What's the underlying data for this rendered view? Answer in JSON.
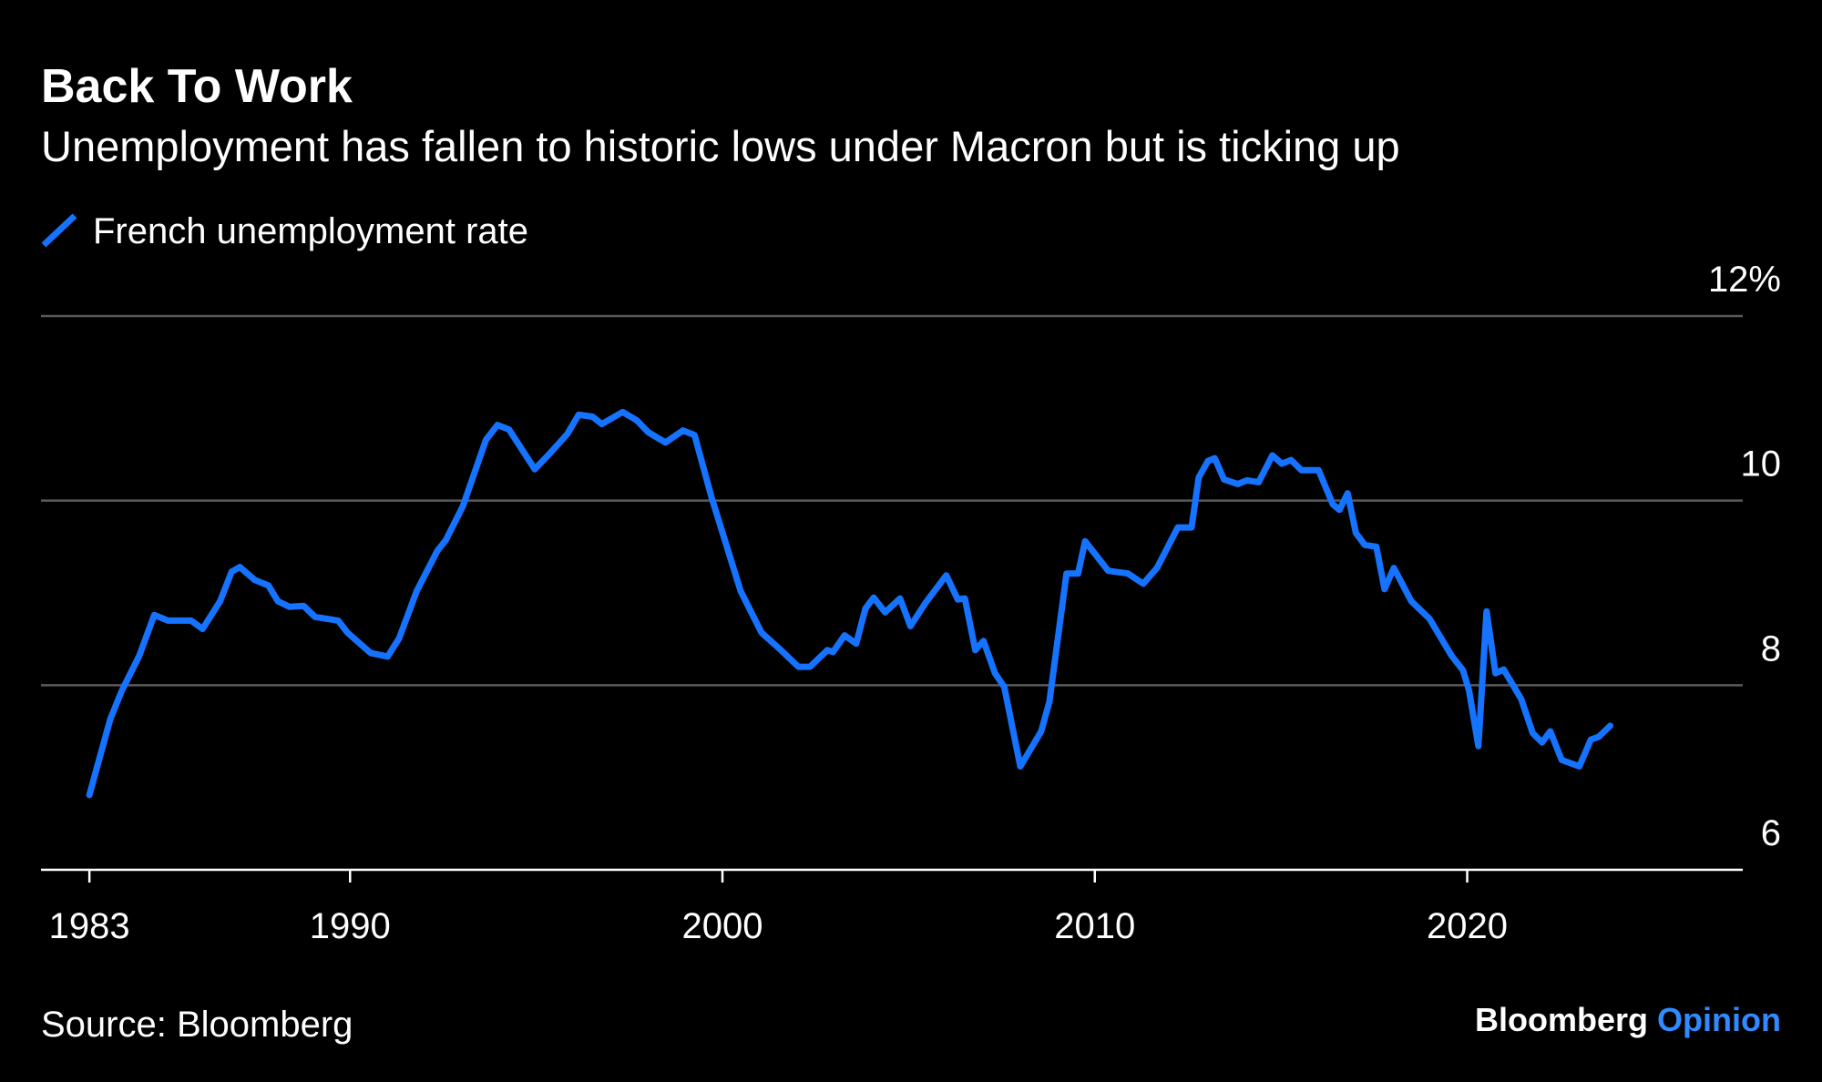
{
  "chart_data": {
    "type": "line",
    "title": "Back To Work",
    "subtitle": "Unemployment has fallen to historic lows under Macron but is ticking up",
    "source": "Source: Bloomberg",
    "brand": "Bloomberg",
    "brand_suffix": "Opinion",
    "x": [
      1983.0,
      1983.56,
      1983.87,
      1984.34,
      1984.74,
      1985.11,
      1985.73,
      1986.04,
      1986.51,
      1986.82,
      1987.04,
      1987.44,
      1987.81,
      1988.06,
      1988.37,
      1988.75,
      1989.06,
      1989.68,
      1989.93,
      1990.55,
      1991.01,
      1991.32,
      1991.79,
      1992.35,
      1992.57,
      1993.03,
      1993.65,
      1993.96,
      1994.27,
      1994.96,
      1995.36,
      1995.83,
      1996.14,
      1996.51,
      1996.76,
      1997.32,
      1997.7,
      1998.01,
      1998.47,
      1998.94,
      1999.25,
      1999.71,
      2000.49,
      2001.05,
      2001.57,
      2002.04,
      2002.35,
      2002.82,
      2002.97,
      2003.28,
      2003.59,
      2003.84,
      2004.06,
      2004.37,
      2004.77,
      2005.05,
      2005.45,
      2006.01,
      2006.32,
      2006.51,
      2006.79,
      2007.01,
      2007.32,
      2007.57,
      2008.0,
      2008.56,
      2008.78,
      2009.24,
      2009.55,
      2009.74,
      2010.36,
      2010.89,
      2011.3,
      2011.67,
      2012.23,
      2012.6,
      2012.79,
      2013.04,
      2013.22,
      2013.47,
      2013.84,
      2014.09,
      2014.4,
      2014.77,
      2015.02,
      2015.27,
      2015.55,
      2016.01,
      2016.39,
      2016.57,
      2016.79,
      2017.01,
      2017.25,
      2017.56,
      2017.78,
      2018.03,
      2018.5,
      2018.99,
      2019.58,
      2019.89,
      2020.05,
      2020.3,
      2020.52,
      2020.76,
      2020.98,
      2021.45,
      2021.76,
      2022.01,
      2022.23,
      2022.54,
      2023.01,
      2023.32,
      2023.53,
      2023.84
    ],
    "series": [
      {
        "name": "French unemployment rate",
        "color": "#1573ff",
        "values": [
          6.81,
          7.63,
          7.94,
          8.32,
          8.76,
          8.7,
          8.7,
          8.61,
          8.91,
          9.23,
          9.28,
          9.14,
          9.08,
          8.91,
          8.85,
          8.86,
          8.74,
          8.7,
          8.57,
          8.35,
          8.31,
          8.51,
          9.02,
          9.46,
          9.57,
          9.94,
          10.66,
          10.82,
          10.77,
          10.34,
          10.51,
          10.72,
          10.93,
          10.91,
          10.83,
          10.96,
          10.87,
          10.74,
          10.63,
          10.76,
          10.71,
          10.03,
          9.02,
          8.57,
          8.38,
          8.2,
          8.2,
          8.38,
          8.36,
          8.54,
          8.45,
          8.83,
          8.95,
          8.79,
          8.94,
          8.64,
          8.89,
          9.19,
          8.93,
          8.94,
          8.38,
          8.48,
          8.13,
          7.98,
          7.12,
          7.5,
          7.82,
          9.21,
          9.21,
          9.56,
          9.24,
          9.21,
          9.1,
          9.27,
          9.71,
          9.71,
          10.25,
          10.43,
          10.46,
          10.23,
          10.18,
          10.22,
          10.2,
          10.49,
          10.4,
          10.44,
          10.33,
          10.33,
          9.96,
          9.9,
          10.08,
          9.65,
          9.52,
          9.5,
          9.04,
          9.27,
          8.91,
          8.72,
          8.32,
          8.16,
          7.94,
          7.34,
          8.8,
          8.13,
          8.17,
          7.85,
          7.48,
          7.38,
          7.5,
          7.19,
          7.12,
          7.41,
          7.44,
          7.56
        ]
      }
    ],
    "xlim": [
      1981.7,
      2027.4
    ],
    "xticks": [
      1983,
      1990,
      2000,
      2010,
      2020
    ],
    "ylim": [
      6,
      12
    ],
    "yticks": [
      6,
      8,
      10,
      {
        "value": 12,
        "label": "12%"
      }
    ],
    "grid": true
  }
}
